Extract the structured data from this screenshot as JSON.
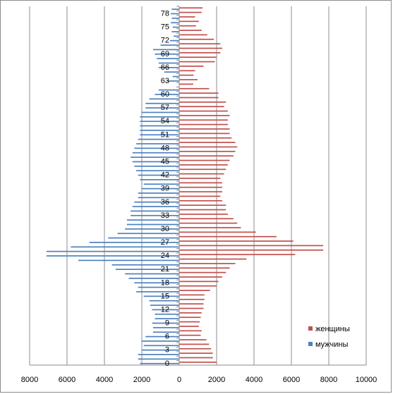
{
  "chart_data": {
    "type": "bar",
    "orientation": "horizontal",
    "title": "",
    "xlabel": "",
    "ylabel": "",
    "xlim": [
      -8000,
      10000
    ],
    "x_ticks": [
      "8000",
      "6000",
      "4000",
      "2000",
      "0",
      "2000",
      "4000",
      "6000",
      "8000",
      "10000"
    ],
    "y_ticks": [
      "0",
      "3",
      "6",
      "9",
      "12",
      "15",
      "18",
      "21",
      "24",
      "27",
      "30",
      "33",
      "36",
      "39",
      "42",
      "45",
      "48",
      "51",
      "54",
      "57",
      "60",
      "63",
      "66",
      "69",
      "72",
      "75",
      "78"
    ],
    "categories": [
      0,
      1,
      2,
      3,
      4,
      5,
      6,
      7,
      8,
      9,
      10,
      11,
      12,
      13,
      14,
      15,
      16,
      17,
      18,
      19,
      20,
      21,
      22,
      23,
      24,
      25,
      26,
      27,
      28,
      29,
      30,
      31,
      32,
      33,
      34,
      35,
      36,
      37,
      38,
      39,
      40,
      41,
      42,
      43,
      44,
      45,
      46,
      47,
      48,
      49,
      50,
      51,
      52,
      53,
      54,
      55,
      56,
      57,
      58,
      59,
      60,
      61,
      62,
      63,
      64,
      65,
      66,
      67,
      68,
      69,
      70,
      71,
      72,
      73,
      74,
      75,
      76,
      77,
      78,
      79
    ],
    "grid": "vertical",
    "legend_position": "right",
    "colors": {
      "women": "#c0504d",
      "men": "#4f81bd"
    },
    "series": [
      {
        "name": "женщины",
        "values": [
          2000,
          1800,
          1800,
          1700,
          1600,
          1450,
          1150,
          1200,
          1050,
          1100,
          1150,
          1200,
          1300,
          1300,
          1350,
          1350,
          1650,
          2000,
          2100,
          2300,
          2500,
          2700,
          3000,
          3600,
          6200,
          7700,
          7700,
          6100,
          5200,
          4100,
          3300,
          3100,
          2900,
          2600,
          2500,
          2500,
          2300,
          2200,
          2300,
          2300,
          2300,
          2200,
          2400,
          2500,
          2600,
          2700,
          2900,
          3000,
          3100,
          3000,
          2800,
          2700,
          2700,
          2600,
          2600,
          2700,
          2600,
          2400,
          2500,
          2100,
          2100,
          1600,
          750,
          980,
          770,
          850,
          1300,
          1900,
          2000,
          2200,
          2300,
          2200,
          1850,
          1500,
          1200,
          900,
          1050,
          850,
          1200,
          1250
        ]
      },
      {
        "name": "мужчины",
        "values": [
          2100,
          2200,
          2200,
          2000,
          1900,
          2000,
          1800,
          1400,
          1400,
          1450,
          1300,
          1300,
          1450,
          1550,
          1600,
          1900,
          2300,
          2200,
          2400,
          2700,
          2900,
          3400,
          3600,
          5400,
          7100,
          7100,
          5800,
          4800,
          3800,
          3300,
          2900,
          2800,
          2800,
          2600,
          2600,
          2500,
          2400,
          2200,
          2200,
          2000,
          1900,
          2100,
          2200,
          2300,
          2400,
          2500,
          2600,
          2500,
          2400,
          2300,
          2200,
          2100,
          2100,
          2100,
          2100,
          2100,
          2000,
          1800,
          1800,
          1600,
          1300,
          1100,
          0,
          650,
          350,
          800,
          1100,
          1100,
          1200,
          1300,
          1400,
          1000,
          500,
          300,
          400,
          350,
          450,
          400,
          450,
          400
        ]
      }
    ]
  }
}
